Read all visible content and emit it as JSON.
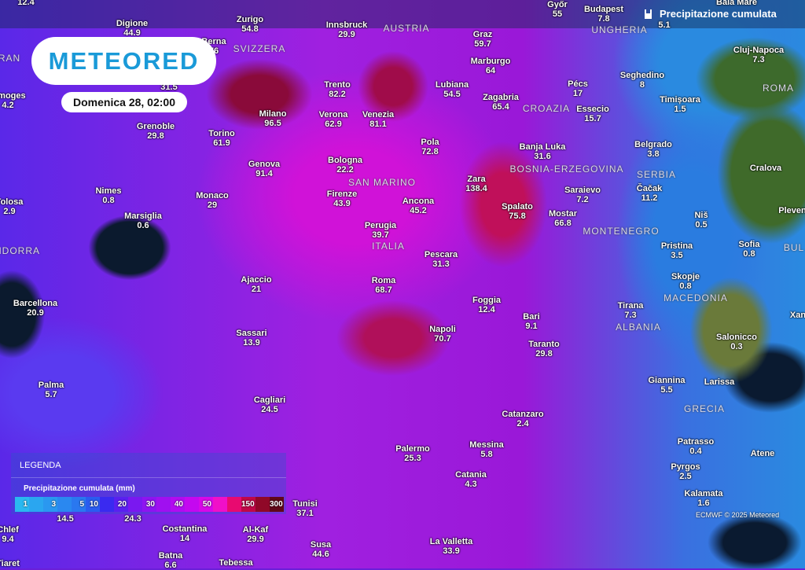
{
  "header": {
    "title": "Precipitazione cumulata",
    "title_icon": "rain-gauge-icon",
    "logo": "METEORED",
    "date": "Domenica 28, 02:00"
  },
  "legend": {
    "heading": "LEGENDA",
    "title": "Precipitazione cumulata (mm)",
    "steps": [
      {
        "label": "1",
        "color": "#2ab8f0"
      },
      {
        "label": "",
        "color": "#2aa6f0"
      },
      {
        "label": "3",
        "color": "#2a98f0"
      },
      {
        "label": "",
        "color": "#2a88f0"
      },
      {
        "label": "5",
        "color": "#2a78f0"
      },
      {
        "label": "10",
        "color": "#2a5cf0"
      },
      {
        "label": "",
        "color": "#3a2af0"
      },
      {
        "label": "20",
        "color": "#5a20f0"
      },
      {
        "label": "",
        "color": "#7a18f0"
      },
      {
        "label": "30",
        "color": "#8e14f0"
      },
      {
        "label": "",
        "color": "#a010f0"
      },
      {
        "label": "40",
        "color": "#b20cf0"
      },
      {
        "label": "",
        "color": "#c408f0"
      },
      {
        "label": "50",
        "color": "#d808e8"
      },
      {
        "label": "",
        "color": "#f010c8"
      },
      {
        "label": "",
        "color": "#e80a70"
      },
      {
        "label": "150",
        "color": "#c00848"
      },
      {
        "label": "",
        "color": "#900828"
      },
      {
        "label": "300",
        "color": "#600818"
      }
    ]
  },
  "credit": "ECMWF © 2025 Meteored",
  "cities": [
    {
      "name": "",
      "value": "12.4"
    },
    {
      "name": "Digione",
      "value": "44.9"
    },
    {
      "name": "Zurigo",
      "value": "54.8"
    },
    {
      "name": "Innsbruck",
      "value": "29.9"
    },
    {
      "name": "Győr",
      "value": "55"
    },
    {
      "name": "Budapest",
      "value": "7.8"
    },
    {
      "name": "",
      "value": "5.1"
    },
    {
      "name": "Baia Mare",
      "value": ""
    },
    {
      "name": "Berna",
      "value": "76"
    },
    {
      "name": "Graz",
      "value": "59.7"
    },
    {
      "name": "Marburgo",
      "value": "64"
    },
    {
      "name": "Cluj-Napoca",
      "value": "7.3"
    },
    {
      "name": "Seghedino",
      "value": "8"
    },
    {
      "name": "",
      "value": "31.5"
    },
    {
      "name": "Trento",
      "value": "82.2"
    },
    {
      "name": "Lubiana",
      "value": "54.5"
    },
    {
      "name": "Pécs",
      "value": "17"
    },
    {
      "name": "Zagabria",
      "value": "65.4"
    },
    {
      "name": "Limoges",
      "value": "4.2"
    },
    {
      "name": "Timișoara",
      "value": "1.5"
    },
    {
      "name": "Milano",
      "value": "96.5"
    },
    {
      "name": "Verona",
      "value": "62.9"
    },
    {
      "name": "Venezia",
      "value": "81.1"
    },
    {
      "name": "Essecio",
      "value": "15.7"
    },
    {
      "name": "Grenoble",
      "value": "29.8"
    },
    {
      "name": "Torino",
      "value": "61.9"
    },
    {
      "name": "Pola",
      "value": "72.8"
    },
    {
      "name": "Banja Luka",
      "value": "31.6"
    },
    {
      "name": "Belgrado",
      "value": "3.8"
    },
    {
      "name": "Genova",
      "value": "91.4"
    },
    {
      "name": "Bologna",
      "value": "22.2"
    },
    {
      "name": "Zara",
      "value": "138.4"
    },
    {
      "name": "Cralova",
      "value": ""
    },
    {
      "name": "Nimes",
      "value": "0.8"
    },
    {
      "name": "Tolosa",
      "value": "2.9"
    },
    {
      "name": "Monaco",
      "value": "29"
    },
    {
      "name": "Firenze",
      "value": "43.9"
    },
    {
      "name": "Ancona",
      "value": "45.2"
    },
    {
      "name": "Saraievo",
      "value": "7.2"
    },
    {
      "name": "Čačak",
      "value": "11.2"
    },
    {
      "name": "Spalato",
      "value": "75.8"
    },
    {
      "name": "Mostar",
      "value": "66.8"
    },
    {
      "name": "Marsiglia",
      "value": "0.6"
    },
    {
      "name": "Pleven",
      "value": ""
    },
    {
      "name": "Niš",
      "value": "0.5"
    },
    {
      "name": "Perugia",
      "value": "39.7"
    },
    {
      "name": "Pristina",
      "value": "3.5"
    },
    {
      "name": "Sofia",
      "value": "0.8"
    },
    {
      "name": "Pescara",
      "value": "31.3"
    },
    {
      "name": "Ajaccio",
      "value": "21"
    },
    {
      "name": "Roma",
      "value": "68.7"
    },
    {
      "name": "Skopje",
      "value": "0.8"
    },
    {
      "name": "Barcellona",
      "value": "20.9"
    },
    {
      "name": "Foggia",
      "value": "12.4"
    },
    {
      "name": "Tirana",
      "value": "7.3"
    },
    {
      "name": "Bari",
      "value": "9.1"
    },
    {
      "name": "Sassari",
      "value": "13.9"
    },
    {
      "name": "Napoli",
      "value": "70.7"
    },
    {
      "name": "Salonicco",
      "value": "0.3"
    },
    {
      "name": "Taranto",
      "value": "29.8"
    },
    {
      "name": "Xan",
      "value": ""
    },
    {
      "name": "Palma",
      "value": "5.7"
    },
    {
      "name": "Giannina",
      "value": "5.5"
    },
    {
      "name": "Larissa",
      "value": ""
    },
    {
      "name": "Cagliari",
      "value": "24.5"
    },
    {
      "name": "Catanzaro",
      "value": "2.4"
    },
    {
      "name": "Patrasso",
      "value": "0.4"
    },
    {
      "name": "Palermo",
      "value": "25.3"
    },
    {
      "name": "Messina",
      "value": "5.8"
    },
    {
      "name": "Atene",
      "value": ""
    },
    {
      "name": "Pyrgos",
      "value": "2.5"
    },
    {
      "name": "Catania",
      "value": "4.3"
    },
    {
      "name": "Kalamata",
      "value": "1.6"
    },
    {
      "name": "Tunisi",
      "value": "37.1"
    },
    {
      "name": "",
      "value": "14.5"
    },
    {
      "name": "",
      "value": "24.3"
    },
    {
      "name": "Costantina",
      "value": "14"
    },
    {
      "name": "Chlef",
      "value": "9.4"
    },
    {
      "name": "Al-Kaf",
      "value": "29.9"
    },
    {
      "name": "Susa",
      "value": "44.6"
    },
    {
      "name": "La Valletta",
      "value": "33.9"
    },
    {
      "name": "Batna",
      "value": "6.6"
    },
    {
      "name": "Tebessa",
      "value": ""
    },
    {
      "name": "Tiaret",
      "value": ""
    }
  ],
  "countries": [
    "AUSTRIA",
    "SVIZZERA",
    "RAN",
    "UNGHERIA",
    "CROAZIA",
    "BOSNIA-ERZEGOVINA",
    "SERBIA",
    "SAN MARINO",
    "MONTENEGRO",
    "ITALIA",
    "NDORRA",
    "MACEDONIA",
    "ALBANIA",
    "GRECIA",
    "ROMA",
    "BUL"
  ]
}
